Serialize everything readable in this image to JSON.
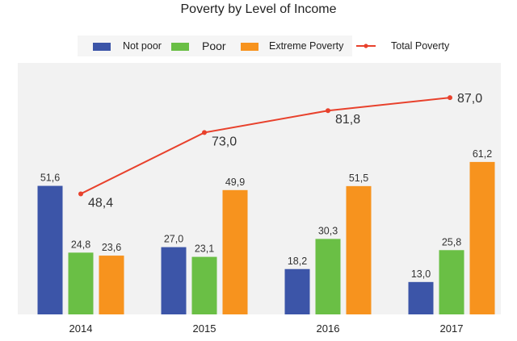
{
  "chart_data": {
    "type": "bar",
    "title": "Poverty by Level of Income",
    "categories": [
      "2014",
      "2015",
      "2016",
      "2017"
    ],
    "series": [
      {
        "name": "Not poor",
        "type": "bar",
        "color": "#3c55a8",
        "values": [
          51.6,
          27.0,
          18.2,
          13.0
        ],
        "labels": [
          "51,6",
          "27,0",
          "18,2",
          "13,0"
        ]
      },
      {
        "name": "Poor",
        "type": "bar",
        "color": "#6abf45",
        "values": [
          24.8,
          23.1,
          30.3,
          25.8
        ],
        "labels": [
          "24,8",
          "23,1",
          "30,3",
          "25,8"
        ]
      },
      {
        "name": "Extreme Poverty",
        "type": "bar",
        "color": "#f7931e",
        "values": [
          23.6,
          49.9,
          51.5,
          61.2
        ],
        "labels": [
          "23,6",
          "49,9",
          "51,5",
          "61,2"
        ]
      },
      {
        "name": "Total Poverty",
        "type": "line",
        "color": "#e8412c",
        "values": [
          48.4,
          73.0,
          81.8,
          87.0
        ],
        "labels": [
          "48,4",
          "73,0",
          "81,8",
          "87,0"
        ]
      }
    ],
    "xlabel": "",
    "ylabel": "",
    "ylim": [
      0,
      100
    ],
    "grid": false,
    "legend_position": "top"
  }
}
